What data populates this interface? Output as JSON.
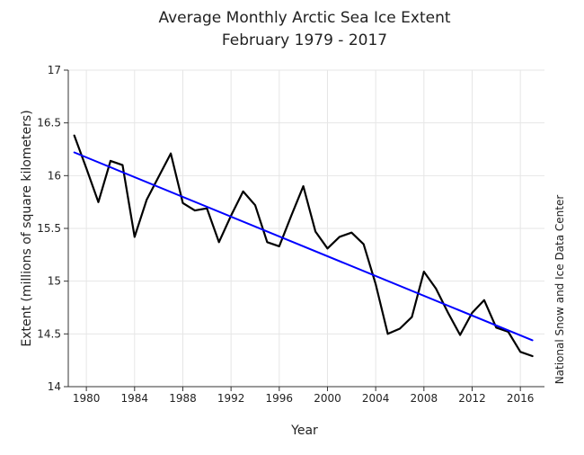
{
  "chart_data": {
    "type": "line",
    "title": "Average Monthly Arctic Sea Ice Extent",
    "subtitle": "February 1979 - 2017",
    "xlabel": "Year",
    "ylabel": "Extent (millions of square kilometers)",
    "side_label": "National Snow and Ice Data Center",
    "xlim": [
      1978.5,
      2018
    ],
    "ylim": [
      14,
      17
    ],
    "x_ticks": [
      1980,
      1984,
      1988,
      1992,
      1996,
      2000,
      2004,
      2008,
      2012,
      2016
    ],
    "y_ticks": [
      14,
      14.5,
      15,
      15.5,
      16,
      16.5,
      17
    ],
    "y_tick_labels": [
      "14",
      "14.5",
      "15",
      "15.5",
      "16",
      "16.5",
      "17"
    ],
    "grid": true,
    "series": [
      {
        "role": "data",
        "color": "#000000",
        "x": [
          1979,
          1980,
          1981,
          1982,
          1983,
          1984,
          1985,
          1986,
          1987,
          1988,
          1989,
          1990,
          1991,
          1992,
          1993,
          1994,
          1995,
          1996,
          1997,
          1998,
          1999,
          2000,
          2001,
          2002,
          2003,
          2004,
          2005,
          2006,
          2007,
          2008,
          2009,
          2010,
          2011,
          2012,
          2013,
          2014,
          2015,
          2016,
          2017
        ],
        "values": [
          16.38,
          16.07,
          15.75,
          16.14,
          16.1,
          15.42,
          15.77,
          15.99,
          16.21,
          15.74,
          15.67,
          15.69,
          15.37,
          15.62,
          15.85,
          15.72,
          15.37,
          15.33,
          15.62,
          15.9,
          15.47,
          15.31,
          15.42,
          15.46,
          15.35,
          14.97,
          14.5,
          14.55,
          14.66,
          15.09,
          14.93,
          14.7,
          14.49,
          14.7,
          14.82,
          14.56,
          14.52,
          14.33,
          14.29
        ]
      },
      {
        "role": "trend",
        "color": "#0000ff",
        "x": [
          1979,
          2017
        ],
        "values": [
          16.22,
          14.44
        ]
      }
    ]
  }
}
